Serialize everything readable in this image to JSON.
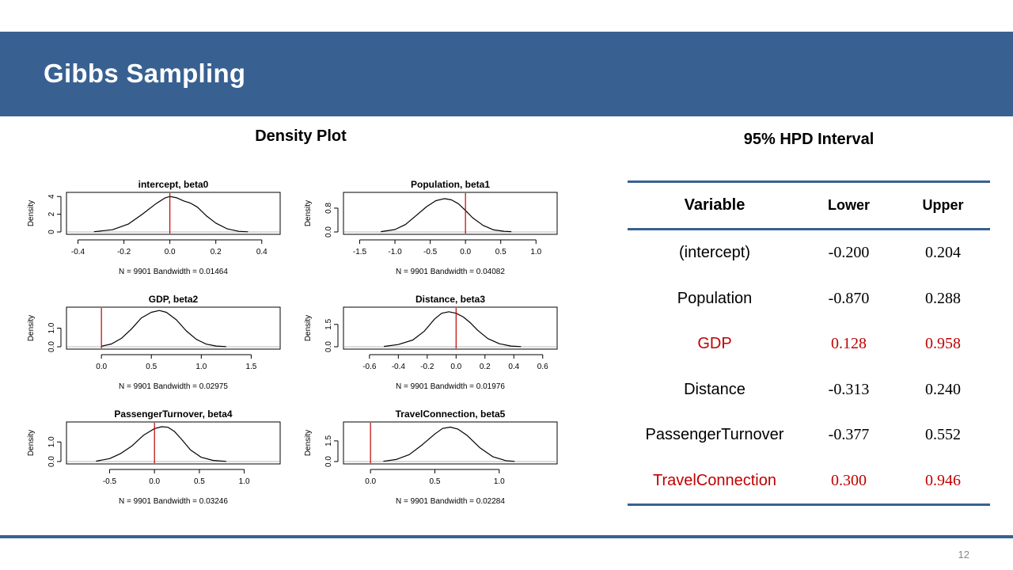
{
  "slide": {
    "title": "Gibbs Sampling",
    "page_number": "12"
  },
  "density": {
    "heading": "Density Plot"
  },
  "hpd": {
    "heading": "95% HPD Interval",
    "columns": {
      "variable": "Variable",
      "lower": "Lower",
      "upper": "Upper"
    },
    "rows": [
      {
        "variable": "(intercept)",
        "lower": "-0.200",
        "upper": "0.204",
        "highlight": false
      },
      {
        "variable": "Population",
        "lower": "-0.870",
        "upper": "0.288",
        "highlight": false
      },
      {
        "variable": "GDP",
        "lower": "0.128",
        "upper": "0.958",
        "highlight": true
      },
      {
        "variable": "Distance",
        "lower": "-0.313",
        "upper": "0.240",
        "highlight": false
      },
      {
        "variable": "PassengerTurnover",
        "lower": "-0.377",
        "upper": "0.552",
        "highlight": false
      },
      {
        "variable": "TravelConnection",
        "lower": "0.300",
        "upper": "0.946",
        "highlight": true
      }
    ]
  },
  "colors": {
    "header_bar": "#386192",
    "highlight_text": "#c00000",
    "zero_line": "#c00000",
    "curve": "#000000"
  },
  "chart_data": [
    {
      "type": "line",
      "title": "intercept, beta0",
      "ylabel": "Density",
      "xlabel": "N = 9901   Bandwidth = 0.01464",
      "xlim": [
        -0.45,
        0.48
      ],
      "ylim": [
        0,
        4.2
      ],
      "xticks": [
        -0.4,
        -0.2,
        0.0,
        0.2,
        0.4
      ],
      "xtick_labels": [
        "-0.4",
        "-0.2",
        "0.0",
        "0.2",
        "0.4"
      ],
      "yticks": [
        0,
        2,
        4
      ],
      "ytick_labels": [
        "0",
        "2",
        "4"
      ],
      "vline": 0,
      "x": [
        -0.33,
        -0.25,
        -0.18,
        -0.12,
        -0.06,
        -0.02,
        0.0,
        0.03,
        0.06,
        0.09,
        0.12,
        0.16,
        0.2,
        0.25,
        0.3,
        0.34
      ],
      "y": [
        0.03,
        0.25,
        0.9,
        2.0,
        3.2,
        3.85,
        4.0,
        3.85,
        3.5,
        3.25,
        2.8,
        1.8,
        1.0,
        0.35,
        0.07,
        0.02
      ]
    },
    {
      "type": "line",
      "title": "Population, beta1",
      "ylabel": "Density",
      "xlabel": "N = 9901   Bandwidth = 0.04082",
      "xlim": [
        -1.73,
        1.3
      ],
      "ylim": [
        0,
        1.25
      ],
      "xticks": [
        -1.5,
        -1.0,
        -0.5,
        0.0,
        0.5,
        1.0
      ],
      "xtick_labels": [
        "-1.5",
        "-1.0",
        "-0.5",
        "0.0",
        "0.5",
        "1.0"
      ],
      "yticks": [
        0,
        0.8
      ],
      "ytick_labels": [
        "0.0",
        "0.8"
      ],
      "vline": 0,
      "x": [
        -1.2,
        -1.0,
        -0.85,
        -0.7,
        -0.55,
        -0.42,
        -0.3,
        -0.2,
        -0.1,
        0.0,
        0.1,
        0.25,
        0.4,
        0.55,
        0.65
      ],
      "y": [
        0.01,
        0.08,
        0.25,
        0.55,
        0.85,
        1.05,
        1.12,
        1.08,
        0.95,
        0.72,
        0.48,
        0.22,
        0.07,
        0.02,
        0.01
      ]
    },
    {
      "type": "line",
      "title": "GDP, beta2",
      "ylabel": "Density",
      "xlabel": "N = 9901   Bandwidth = 0.02975",
      "xlim": [
        -0.35,
        1.79
      ],
      "ylim": [
        0,
        2.0
      ],
      "xticks": [
        0.0,
        0.5,
        1.0,
        1.5
      ],
      "xtick_labels": [
        "0.0",
        "0.5",
        "1.0",
        "1.5"
      ],
      "yticks": [
        0,
        1.0
      ],
      "ytick_labels": [
        "0.0",
        "1.0"
      ],
      "vline": 0,
      "x": [
        0.0,
        0.1,
        0.2,
        0.3,
        0.4,
        0.5,
        0.58,
        0.65,
        0.75,
        0.85,
        0.95,
        1.05,
        1.15,
        1.25
      ],
      "y": [
        0.03,
        0.15,
        0.45,
        0.95,
        1.55,
        1.85,
        1.95,
        1.85,
        1.45,
        0.85,
        0.4,
        0.14,
        0.04,
        0.01
      ]
    },
    {
      "type": "line",
      "title": "Distance, beta3",
      "ylabel": "Density",
      "xlabel": "N = 9901   Bandwidth = 0.01976",
      "xlim": [
        -0.78,
        0.7
      ],
      "ylim": [
        0,
        2.5
      ],
      "xticks": [
        -0.6,
        -0.4,
        -0.2,
        0.0,
        0.2,
        0.4,
        0.6
      ],
      "xtick_labels": [
        "-0.6",
        "-0.4",
        "-0.2",
        "0.0",
        "0.2",
        "0.4",
        "0.6"
      ],
      "yticks": [
        0,
        1.5
      ],
      "ytick_labels": [
        "0.0",
        "1.5"
      ],
      "vline": 0,
      "x": [
        -0.5,
        -0.4,
        -0.3,
        -0.22,
        -0.15,
        -0.1,
        -0.05,
        0.0,
        0.05,
        0.1,
        0.15,
        0.22,
        0.3,
        0.38,
        0.45
      ],
      "y": [
        0.02,
        0.15,
        0.45,
        1.05,
        1.85,
        2.25,
        2.35,
        2.25,
        2.0,
        1.6,
        1.1,
        0.55,
        0.2,
        0.05,
        0.01
      ]
    },
    {
      "type": "line",
      "title": "PassengerTurnover, beta4",
      "ylabel": "Density",
      "xlabel": "N = 9901   Bandwidth = 0.03246",
      "xlim": [
        -0.98,
        1.4
      ],
      "ylim": [
        0,
        1.9
      ],
      "xticks": [
        -0.5,
        0.0,
        0.5,
        1.0
      ],
      "xtick_labels": [
        "-0.5",
        "0.0",
        "0.5",
        "1.0"
      ],
      "yticks": [
        0,
        1.0
      ],
      "ytick_labels": [
        "0.0",
        "1.0"
      ],
      "vline": 0,
      "x": [
        -0.65,
        -0.5,
        -0.38,
        -0.25,
        -0.12,
        0.0,
        0.08,
        0.15,
        0.22,
        0.3,
        0.4,
        0.52,
        0.65,
        0.8
      ],
      "y": [
        0.02,
        0.15,
        0.4,
        0.8,
        1.35,
        1.68,
        1.78,
        1.75,
        1.55,
        1.15,
        0.6,
        0.22,
        0.06,
        0.01
      ]
    },
    {
      "type": "line",
      "title": "TravelConnection, beta5",
      "ylabel": "Density",
      "xlabel": "N = 9901   Bandwidth = 0.02284",
      "xlim": [
        -0.21,
        1.45
      ],
      "ylim": [
        0,
        2.7
      ],
      "xticks": [
        0.0,
        0.5,
        1.0
      ],
      "xtick_labels": [
        "0.0",
        "0.5",
        "1.0"
      ],
      "yticks": [
        0,
        1.5
      ],
      "ytick_labels": [
        "0.0",
        "1.5"
      ],
      "vline": 0,
      "x": [
        0.1,
        0.2,
        0.3,
        0.4,
        0.5,
        0.56,
        0.62,
        0.68,
        0.75,
        0.85,
        0.95,
        1.05,
        1.12
      ],
      "y": [
        0.02,
        0.15,
        0.5,
        1.2,
        2.0,
        2.4,
        2.5,
        2.35,
        1.9,
        1.0,
        0.35,
        0.07,
        0.01
      ]
    }
  ]
}
